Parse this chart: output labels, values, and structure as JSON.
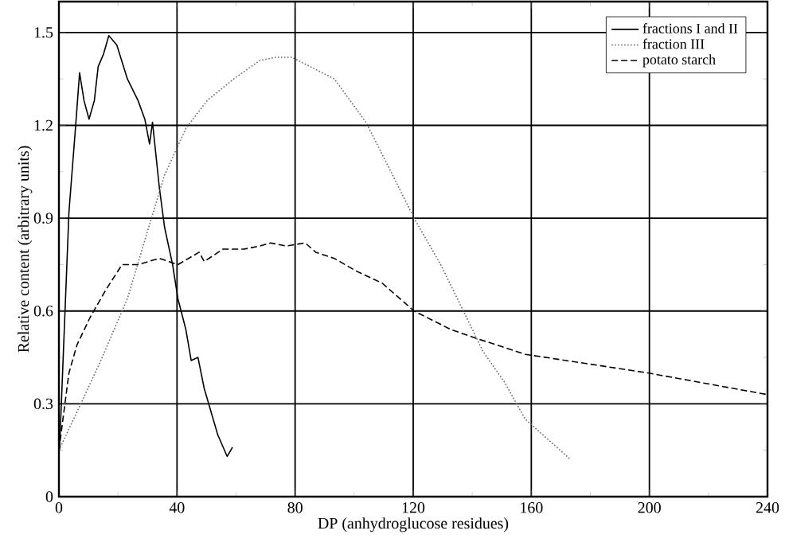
{
  "chart_data": {
    "type": "line",
    "xlabel": "DP (anhydroglucose residues)",
    "ylabel": "Relative content (arbitrary units)",
    "xlim": [
      0,
      240
    ],
    "ylim": [
      0,
      1.6
    ],
    "xticks": [
      0,
      40,
      80,
      120,
      160,
      200,
      240
    ],
    "yticks": [
      0,
      0.3,
      0.6,
      0.9,
      1.2,
      1.5
    ],
    "grid": true,
    "legend": "top right",
    "series": [
      {
        "name": "fractions I and II",
        "color": "#000000",
        "line_style": "solid",
        "x": [
          0.2,
          3.4,
          5.6,
          7,
          8.5,
          10.2,
          12,
          13.3,
          15.1,
          16.9,
          19.6,
          23.2,
          26.8,
          29.1,
          30.7,
          31.7,
          34,
          35.8,
          38.5,
          40.3,
          43,
          44.8,
          47.1,
          49.2,
          53.8,
          57,
          58.8
        ],
        "values": [
          0.15,
          0.92,
          1.19,
          1.37,
          1.28,
          1.22,
          1.28,
          1.39,
          1.43,
          1.49,
          1.46,
          1.35,
          1.28,
          1.22,
          1.14,
          1.21,
          1.0,
          0.87,
          0.75,
          0.64,
          0.54,
          0.44,
          0.45,
          0.35,
          0.2,
          0.13,
          0.16
        ]
      },
      {
        "name": "fraction III",
        "color": "#666666",
        "line_style": "dotted",
        "x": [
          0,
          7.9,
          14.2,
          23.2,
          30.4,
          35.8,
          43,
          50.2,
          59.2,
          68.1,
          73.5,
          78.9,
          93.3,
          104,
          113,
          120.3,
          129.3,
          136.5,
          143.6,
          150.9,
          158,
          173.3
        ],
        "values": [
          0.15,
          0.31,
          0.44,
          0.64,
          0.87,
          1.04,
          1.19,
          1.28,
          1.35,
          1.41,
          1.42,
          1.42,
          1.35,
          1.21,
          1.04,
          0.9,
          0.75,
          0.61,
          0.47,
          0.37,
          0.25,
          0.12
        ]
      },
      {
        "name": "potato starch",
        "color": "#000000",
        "line_style": "dashed",
        "x": [
          0,
          3.4,
          6.1,
          10.6,
          16,
          21.4,
          26.8,
          34,
          40.3,
          47.5,
          49.2,
          55.6,
          62.7,
          68.1,
          71.7,
          77.1,
          83.4,
          87,
          93.3,
          100.5,
          109.5,
          120.3,
          132.8,
          141.9,
          158,
          199.4,
          239.9
        ],
        "values": [
          0.15,
          0.4,
          0.49,
          0.58,
          0.67,
          0.75,
          0.75,
          0.77,
          0.75,
          0.79,
          0.76,
          0.8,
          0.8,
          0.81,
          0.82,
          0.81,
          0.82,
          0.79,
          0.77,
          0.73,
          0.69,
          0.6,
          0.54,
          0.51,
          0.46,
          0.4,
          0.33
        ]
      }
    ]
  }
}
